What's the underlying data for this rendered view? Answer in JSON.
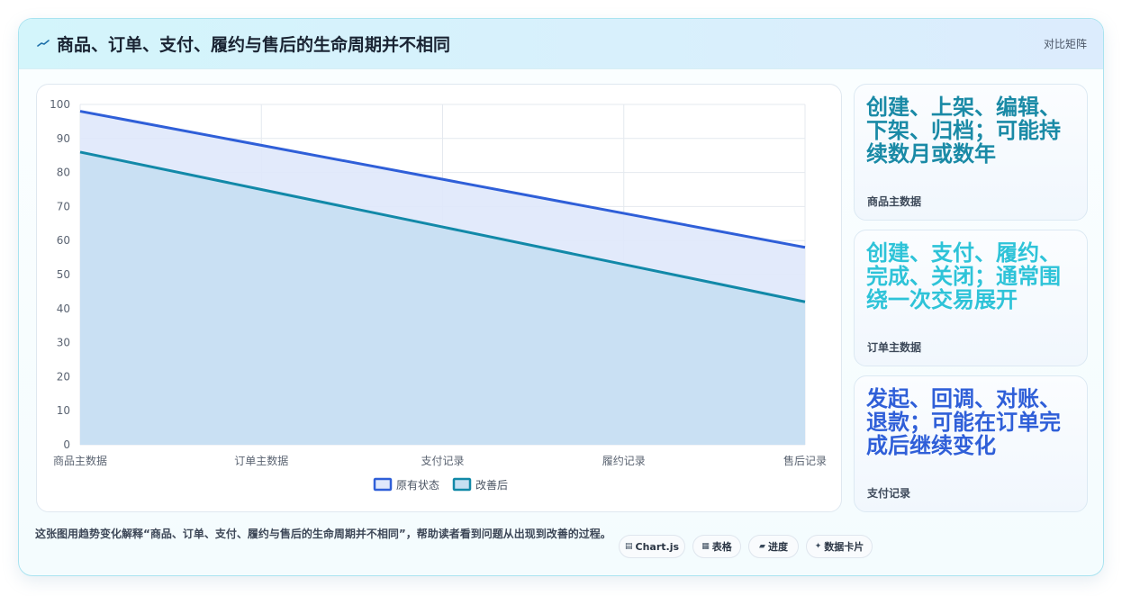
{
  "header": {
    "title": "商品、订单、支付、履约与售后的生命周期并不相同",
    "icon": "trend-line-icon",
    "right_label": "对比矩阵"
  },
  "chart_data": {
    "type": "area",
    "categories": [
      "商品主数据",
      "订单主数据",
      "支付记录",
      "履约记录",
      "售后记录"
    ],
    "series": [
      {
        "name": "原有状态",
        "values": [
          98,
          88,
          78,
          68,
          58
        ],
        "color": "#2f5fd8",
        "fill": "#dfe8fb"
      },
      {
        "name": "改善后",
        "values": [
          86,
          75,
          64,
          53,
          42
        ],
        "color": "#1289a8",
        "fill": "#c6dff2"
      }
    ],
    "ylim": [
      0,
      100
    ],
    "yticks": [
      "0",
      "10",
      "20",
      "30",
      "40",
      "50",
      "60",
      "70",
      "80",
      "90",
      "100"
    ],
    "grid": true,
    "legend": "bottom"
  },
  "side_cards": [
    {
      "main": "创建、上架、编辑、下架、归档；可能持续数月或数年",
      "sub": "商品主数据",
      "color": "#1a8aa6"
    },
    {
      "main": "创建、支付、履约、完成、关闭；通常围绕一次交易展开",
      "sub": "订单主数据",
      "color": "#2ec3d8"
    },
    {
      "main": "发起、回调、对账、退款；可能在订单完成后继续变化",
      "sub": "支付记录",
      "color": "#2f5fd8"
    }
  ],
  "footer": {
    "text": "这张图用趋势变化解释“商品、订单、支付、履约与售后的生命周期并不相同”，帮助读者看到问题从出现到改善的过程。",
    "chips": [
      {
        "icon": "chart-icon",
        "glyph": "▤",
        "label": "Chart.js"
      },
      {
        "icon": "table-icon",
        "glyph": "▦",
        "label": "表格"
      },
      {
        "icon": "progress-icon",
        "glyph": "▰",
        "label": "进度"
      },
      {
        "icon": "sparkle-icon",
        "glyph": "✦",
        "label": "数据卡片"
      }
    ]
  }
}
